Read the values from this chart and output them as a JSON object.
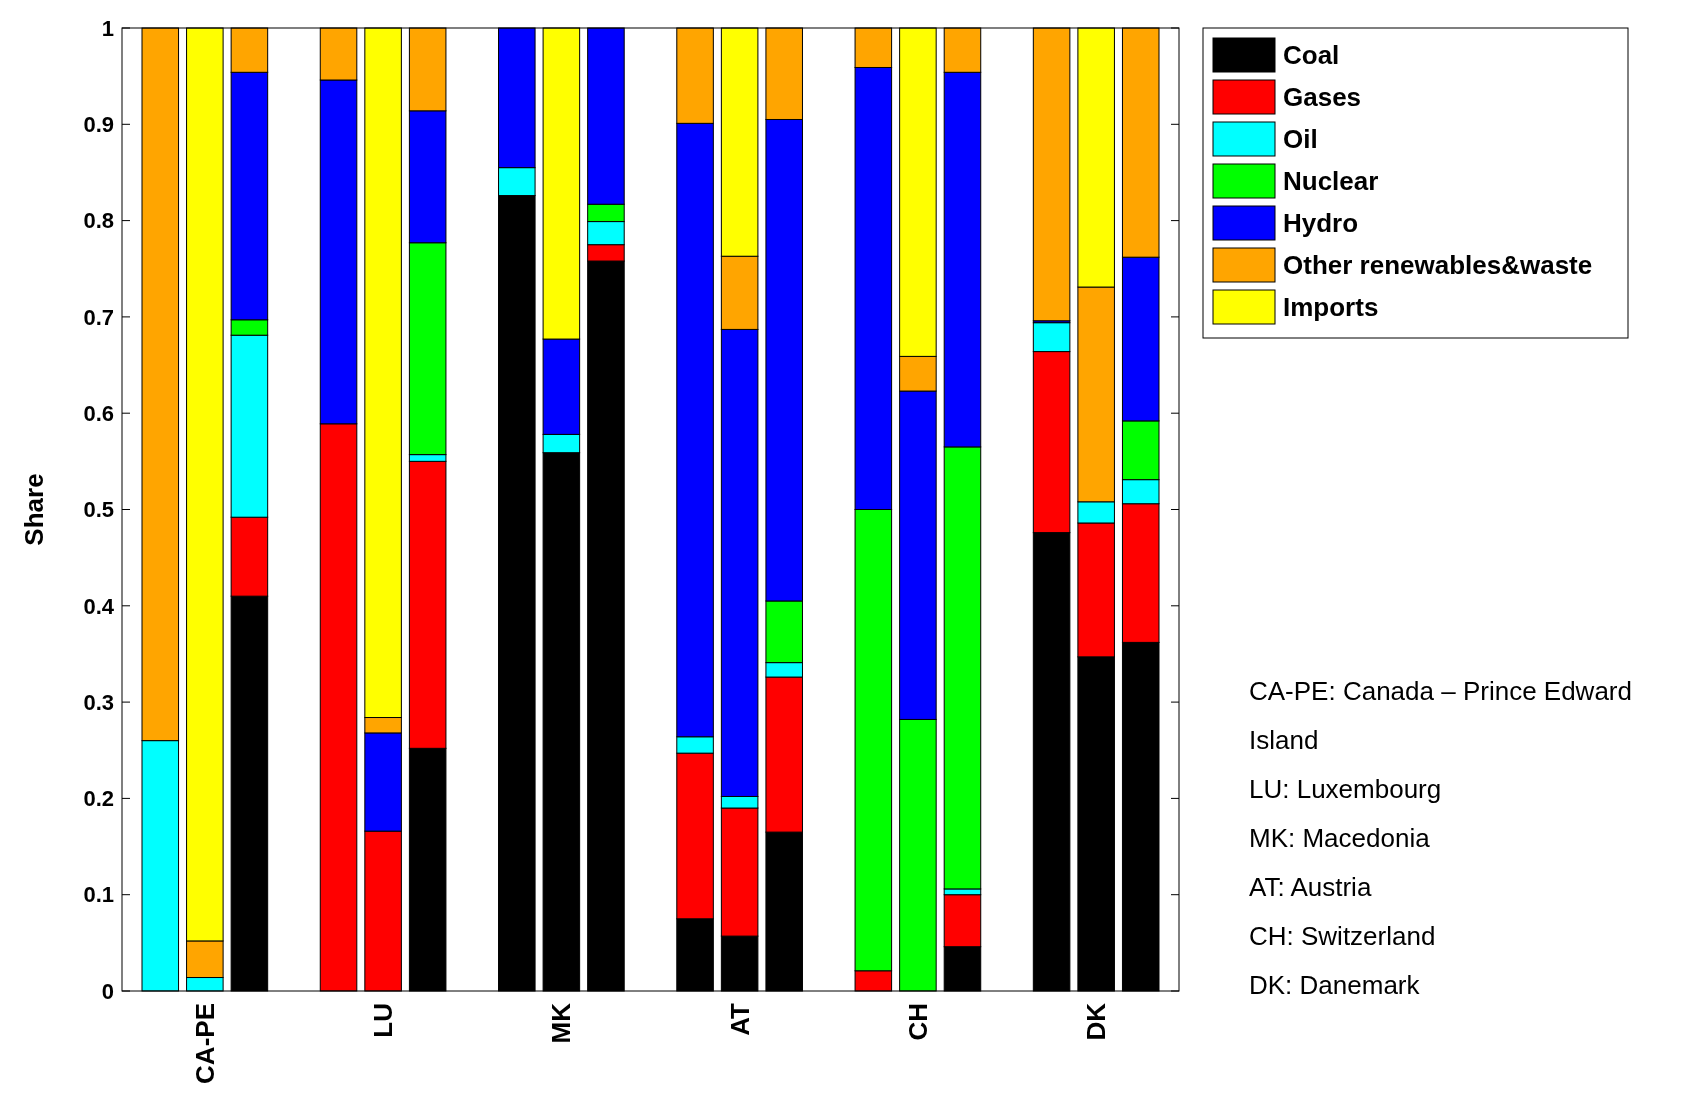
{
  "chart_data": {
    "type": "bar",
    "stacked": true,
    "ylabel": "Share",
    "ylim": [
      0,
      1
    ],
    "yticks": [
      0,
      0.1,
      0.2,
      0.3,
      0.4,
      0.5,
      0.6,
      0.7,
      0.8,
      0.9,
      1
    ],
    "grid": false,
    "legend": "top right",
    "categories": [
      null,
      "CA-PE",
      null,
      null,
      null,
      "LU",
      null,
      null,
      null,
      "MK",
      null,
      null,
      null,
      "AT",
      null,
      null,
      null,
      "CH",
      null,
      null,
      null,
      "DK",
      null
    ],
    "series": [
      {
        "name": "Coal",
        "color": "#000000",
        "values": [
          0,
          0,
          0.41,
          null,
          0,
          0,
          0.252,
          null,
          0.826,
          0.559,
          0.758,
          null,
          0.075,
          0.057,
          0.165,
          null,
          0,
          0,
          0.046,
          null,
          0.476,
          0.347,
          0.362
        ]
      },
      {
        "name": "Gases",
        "color": "#ff0000",
        "values": [
          0,
          0,
          0.082,
          null,
          0.589,
          0.166,
          0.298,
          null,
          0,
          0,
          0.017,
          null,
          0.172,
          0.133,
          0.161,
          null,
          0.021,
          0,
          0.054,
          null,
          0.188,
          0.139,
          0.144
        ]
      },
      {
        "name": "Oil",
        "color": "#00ffff",
        "values": [
          0.26,
          0.014,
          0.189,
          null,
          0,
          0,
          0.007,
          null,
          0.029,
          0.019,
          0.024,
          null,
          0.017,
          0.012,
          0.015,
          null,
          0,
          0,
          0.006,
          null,
          0.03,
          0.022,
          0.025
        ]
      },
      {
        "name": "Nuclear",
        "color": "#00ff00",
        "values": [
          0,
          0,
          0.016,
          null,
          0,
          0,
          0.22,
          null,
          0,
          0,
          0.018,
          null,
          0,
          0,
          0.064,
          null,
          0.479,
          0.282,
          0.459,
          null,
          0,
          0,
          0.061
        ]
      },
      {
        "name": "Hydro",
        "color": "#0000ff",
        "values": [
          0,
          0,
          0.257,
          null,
          0.357,
          0.102,
          0.137,
          null,
          0.145,
          0.099,
          0.183,
          null,
          0.637,
          0.485,
          0.5,
          null,
          0.459,
          0.341,
          0.389,
          null,
          0.002,
          0,
          0.17
        ]
      },
      {
        "name": "Other renewables&waste",
        "color": "#ffa500",
        "values": [
          0.74,
          0.038,
          0.046,
          null,
          0.054,
          0.016,
          0.086,
          null,
          0,
          0,
          0,
          null,
          0.099,
          0.076,
          0.095,
          null,
          0.041,
          0.036,
          0.046,
          null,
          0.304,
          0.223,
          0.238
        ]
      },
      {
        "name": "Imports",
        "color": "#ffff00",
        "values": [
          0,
          0.948,
          0,
          null,
          0,
          0.716,
          0,
          null,
          0,
          0.323,
          0,
          null,
          0,
          0.237,
          0,
          null,
          0,
          0.341,
          0,
          null,
          0,
          0.269,
          0
        ]
      }
    ],
    "annotations": [
      "CA-PE: Canada – Prince Edward Island",
      "LU: Luxembourg",
      "MK: Macedonia",
      "AT: Austria",
      "CH: Switzerland",
      "DK: Danemark"
    ]
  }
}
